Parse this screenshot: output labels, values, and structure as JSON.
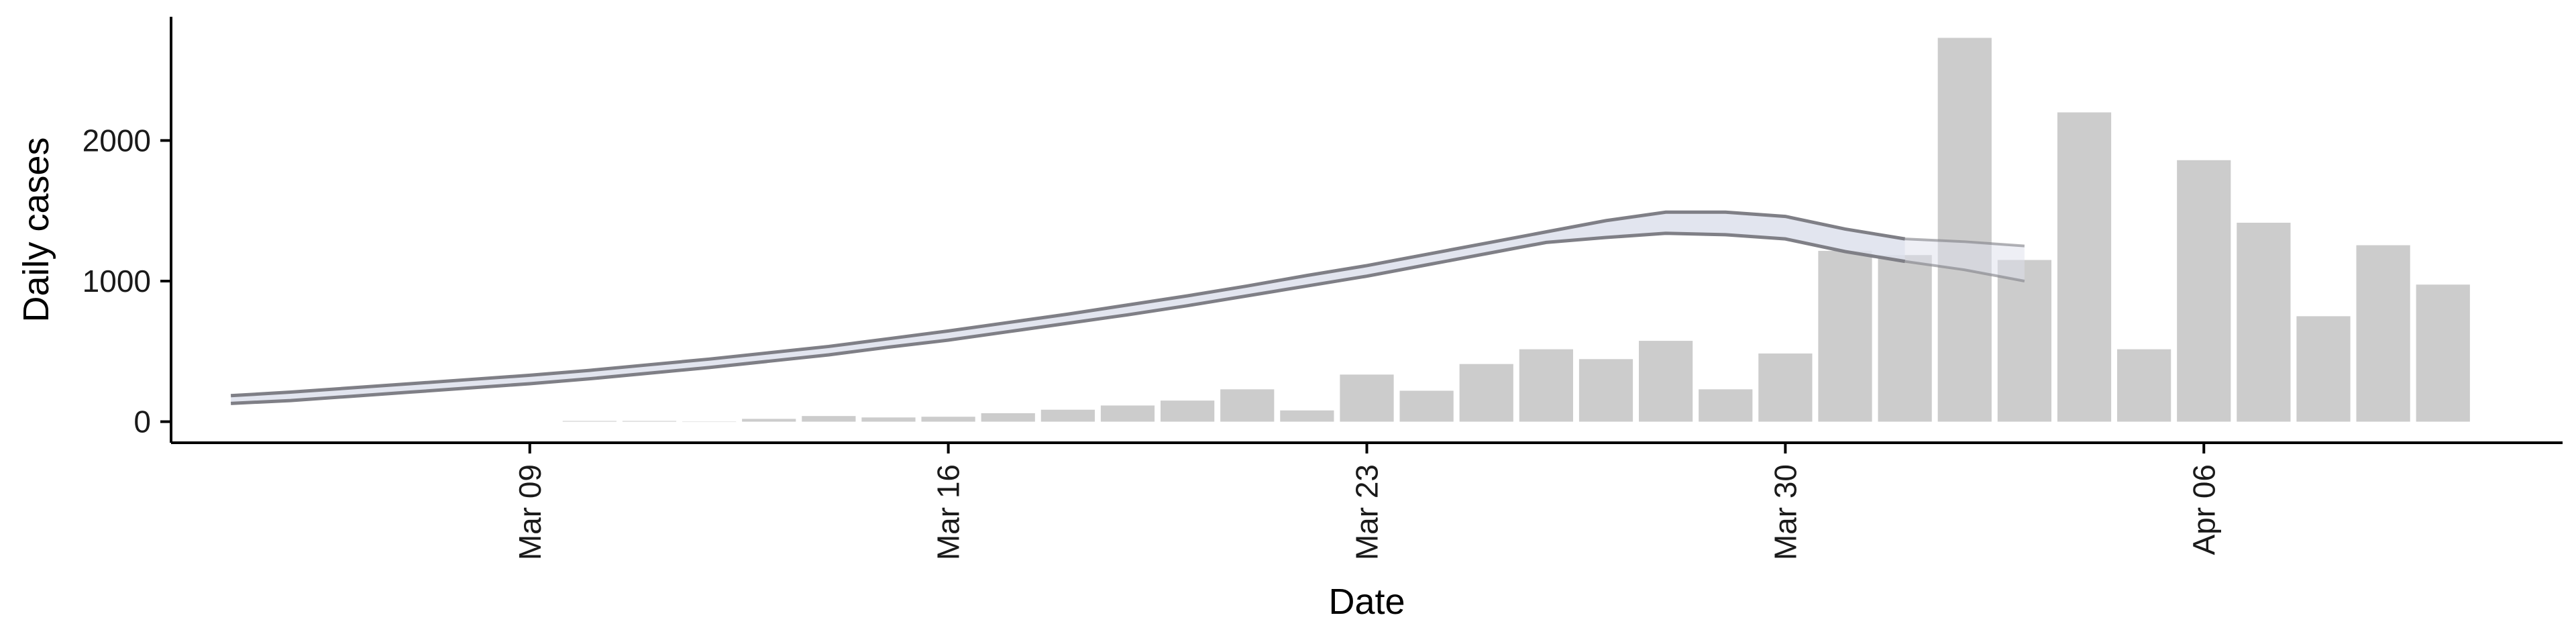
{
  "chart_data": {
    "type": "bar",
    "title": "",
    "xlabel": "Date",
    "ylabel": "Daily cases",
    "x_ticks": [
      "Mar 09",
      "Mar 16",
      "Mar 23",
      "Mar 30",
      "Apr 06"
    ],
    "x_tick_dates": [
      "2020-03-09",
      "2020-03-16",
      "2020-03-23",
      "2020-03-30",
      "2020-04-06"
    ],
    "y_ticks": [
      0,
      1000,
      2000
    ],
    "ylim": [
      -150,
      2880
    ],
    "xlim": [
      "2020-03-03",
      "2020-04-12"
    ],
    "grid": false,
    "bars": {
      "color": "#cccccc",
      "dates": [
        "2020-03-10",
        "2020-03-11",
        "2020-03-12",
        "2020-03-13",
        "2020-03-14",
        "2020-03-15",
        "2020-03-16",
        "2020-03-17",
        "2020-03-18",
        "2020-03-19",
        "2020-03-20",
        "2020-03-21",
        "2020-03-22",
        "2020-03-23",
        "2020-03-24",
        "2020-03-25",
        "2020-03-26",
        "2020-03-27",
        "2020-03-28",
        "2020-03-29",
        "2020-03-30",
        "2020-03-31",
        "2020-04-01",
        "2020-04-02",
        "2020-04-03",
        "2020-04-04",
        "2020-04-05",
        "2020-04-06",
        "2020-04-07",
        "2020-04-08",
        "2020-04-09",
        "2020-04-10"
      ],
      "values": [
        5,
        5,
        0,
        20,
        40,
        30,
        35,
        60,
        85,
        115,
        150,
        230,
        80,
        335,
        220,
        410,
        515,
        445,
        575,
        230,
        485,
        1215,
        1185,
        2730,
        1150,
        2200,
        515,
        1860,
        1415,
        750,
        1255,
        975
      ]
    },
    "estimate": {
      "dates": [
        "2020-03-04",
        "2020-03-05",
        "2020-03-06",
        "2020-03-07",
        "2020-03-08",
        "2020-03-09",
        "2020-03-10",
        "2020-03-11",
        "2020-03-12",
        "2020-03-13",
        "2020-03-14",
        "2020-03-15",
        "2020-03-16",
        "2020-03-17",
        "2020-03-18",
        "2020-03-19",
        "2020-03-20",
        "2020-03-21",
        "2020-03-22",
        "2020-03-23",
        "2020-03-24",
        "2020-03-25",
        "2020-03-26",
        "2020-03-27",
        "2020-03-28",
        "2020-03-29",
        "2020-03-30",
        "2020-03-31",
        "2020-04-01"
      ],
      "upper": [
        185,
        210,
        240,
        270,
        300,
        330,
        365,
        405,
        445,
        490,
        535,
        590,
        645,
        705,
        765,
        830,
        895,
        965,
        1040,
        1110,
        1190,
        1270,
        1350,
        1430,
        1490,
        1490,
        1460,
        1370,
        1300
      ],
      "lower": [
        130,
        150,
        180,
        210,
        240,
        270,
        305,
        345,
        385,
        430,
        475,
        530,
        580,
        640,
        700,
        760,
        825,
        895,
        965,
        1035,
        1115,
        1195,
        1275,
        1310,
        1340,
        1330,
        1300,
        1210,
        1140
      ],
      "outer_upper_ext": [
        1280,
        1250
      ],
      "outer_lower_ext": [
        1080,
        1000
      ],
      "line_color": "#7f7f86",
      "band_color": "#dde0ec"
    }
  }
}
